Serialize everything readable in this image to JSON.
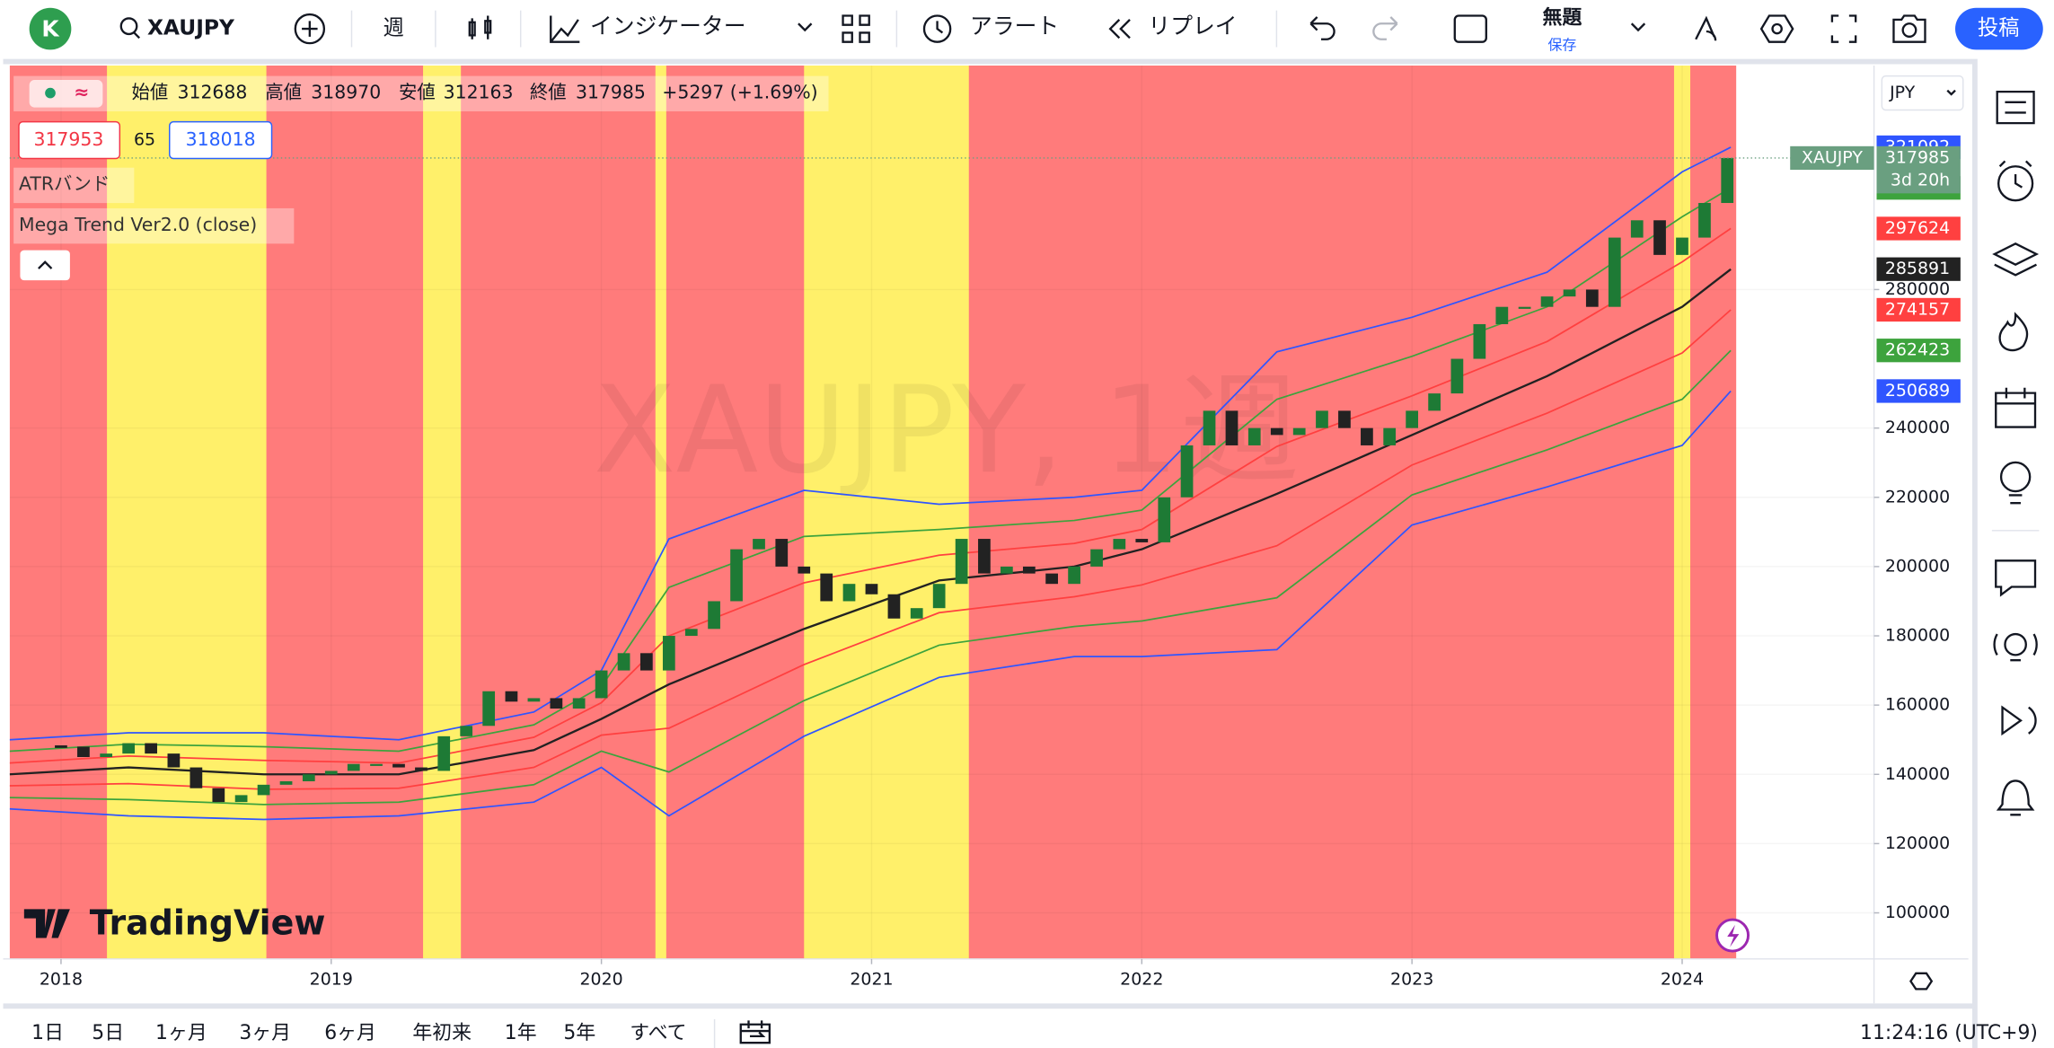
{
  "toolbar": {
    "avatar": "K",
    "symbol": "XAUJPY",
    "interval": "週",
    "indicators": "インジケーター",
    "alert": "アラート",
    "replay": "リプレイ",
    "layout_name": "無題",
    "save": "保存",
    "publish": "投稿"
  },
  "legend": {
    "open_label": "始値",
    "open": 312688,
    "high_label": "高値",
    "high": 318970,
    "low_label": "安値",
    "low": 312163,
    "close_label": "終値",
    "close": 317985,
    "change": "+5297 (+1.69%)",
    "bid": 317953,
    "spread": 65,
    "ask": 318018,
    "indicator_1": "ATRバンド",
    "indicator_2": "Mega Trend Ver2.0 (close)"
  },
  "chart": {
    "type": "candlestick",
    "watermark": "XAUJPY, 1週",
    "currency": "JPY",
    "price_label": "XAUJPY",
    "countdown": "3d 20h",
    "logo": "TradingView",
    "xlim": [
      2017.81,
      2024.71
    ],
    "xticks": [
      2018,
      2019,
      2020,
      2021,
      2022,
      2023,
      2024
    ],
    "ylim": [
      86700,
      344700
    ],
    "yticks": [
      100000,
      120000,
      140000,
      160000,
      180000,
      200000,
      220000,
      240000,
      280000
    ],
    "zone_colors": {
      "base": "#ff7b7b",
      "highlight": "#fff06a"
    },
    "zones_end": 2024.2,
    "highlight_zones": [
      [
        2018.17,
        2018.76
      ],
      [
        2019.34,
        2019.48
      ],
      [
        2020.2,
        2020.24
      ],
      [
        2020.75,
        2021.36
      ],
      [
        2023.97,
        2024.03
      ]
    ],
    "x": [
      2018.0,
      2018.083,
      2018.167,
      2018.25,
      2018.333,
      2018.417,
      2018.5,
      2018.583,
      2018.667,
      2018.75,
      2018.833,
      2018.917,
      2019.0,
      2019.083,
      2019.167,
      2019.25,
      2019.333,
      2019.417,
      2019.5,
      2019.583,
      2019.667,
      2019.75,
      2019.833,
      2019.917,
      2020.0,
      2020.083,
      2020.167,
      2020.25,
      2020.333,
      2020.417,
      2020.5,
      2020.583,
      2020.667,
      2020.75,
      2020.833,
      2020.917,
      2021.0,
      2021.083,
      2021.167,
      2021.25,
      2021.333,
      2021.417,
      2021.5,
      2021.583,
      2021.667,
      2021.75,
      2021.833,
      2021.917,
      2022.0,
      2022.083,
      2022.167,
      2022.25,
      2022.333,
      2022.417,
      2022.5,
      2022.583,
      2022.667,
      2022.75,
      2022.833,
      2022.917,
      2023.0,
      2023.083,
      2023.167,
      2023.25,
      2023.333,
      2023.417,
      2023.5,
      2023.583,
      2023.667,
      2023.75,
      2023.833,
      2023.917,
      2024.0,
      2024.083,
      2024.167
    ],
    "closes": [
      148000,
      145000,
      146000,
      149000,
      146000,
      142000,
      136000,
      132000,
      134000,
      137000,
      138000,
      140000,
      141000,
      143000,
      143000,
      142000,
      141000,
      151000,
      154000,
      164000,
      161000,
      162000,
      159000,
      162000,
      170000,
      175000,
      170000,
      180000,
      182000,
      190000,
      205000,
      208000,
      200000,
      198000,
      190000,
      195000,
      192000,
      185000,
      188000,
      195000,
      208000,
      198000,
      200000,
      198000,
      195000,
      200000,
      205000,
      208000,
      207000,
      220000,
      235000,
      245000,
      235000,
      240000,
      238000,
      240000,
      245000,
      240000,
      235000,
      240000,
      245000,
      250000,
      260000,
      270000,
      275000,
      275000,
      278000,
      280000,
      275000,
      295000,
      300000,
      290000,
      295000,
      305000,
      317985
    ],
    "up_color": "#1e7a35",
    "down_color": "#222222",
    "price_badge_color": "#6a9f80",
    "band_x": [
      2017.81,
      2018.25,
      2018.75,
      2019.25,
      2019.75,
      2020.0,
      2020.25,
      2020.75,
      2021.25,
      2021.75,
      2022.0,
      2022.5,
      2023.0,
      2023.5,
      2024.0,
      2024.18
    ],
    "bands": [
      {
        "color": "#2f55ff",
        "values": [
          150000,
          152000,
          152000,
          150000,
          158000,
          170000,
          208000,
          222000,
          218000,
          220000,
          222000,
          262000,
          272000,
          285000,
          314000,
          321092
        ]
      },
      {
        "color": "#3da33d",
        "values": [
          146700,
          148700,
          148000,
          146700,
          154300,
          165300,
          194000,
          208700,
          210700,
          213300,
          216300,
          248300,
          260700,
          275000,
          301000,
          309358
        ]
      },
      {
        "color": "#ff4040",
        "values": [
          143300,
          145300,
          144000,
          143300,
          150700,
          160700,
          180000,
          195300,
          203300,
          206700,
          210700,
          234700,
          249300,
          265000,
          288000,
          297624
        ]
      },
      {
        "color": "#222222",
        "values": [
          140000,
          142000,
          140000,
          140000,
          147000,
          156000,
          166000,
          182000,
          196000,
          200000,
          205000,
          221000,
          238000,
          255000,
          275000,
          285891
        ]
      },
      {
        "color": "#ff4040",
        "values": [
          136700,
          137300,
          135700,
          136000,
          142000,
          151300,
          153300,
          171700,
          186700,
          191300,
          194700,
          206000,
          229300,
          244300,
          261700,
          274157
        ]
      },
      {
        "color": "#3da33d",
        "values": [
          133300,
          132700,
          131300,
          132000,
          137000,
          146700,
          140700,
          161300,
          177300,
          182700,
          184300,
          191000,
          220700,
          233700,
          248300,
          262423
        ]
      },
      {
        "color": "#2f55ff",
        "values": [
          130000,
          128000,
          127000,
          128000,
          132000,
          142000,
          128000,
          151000,
          168000,
          174000,
          174000,
          176000,
          212000,
          223000,
          235000,
          250689
        ]
      }
    ]
  },
  "bottom_bar": {
    "ranges": [
      "1日",
      "5日",
      "1ヶ月",
      "3ヶ月",
      "6ヶ月",
      "年初来",
      "1年",
      "5年",
      "すべて"
    ],
    "clock": "11:24:16 (UTC+9)"
  }
}
